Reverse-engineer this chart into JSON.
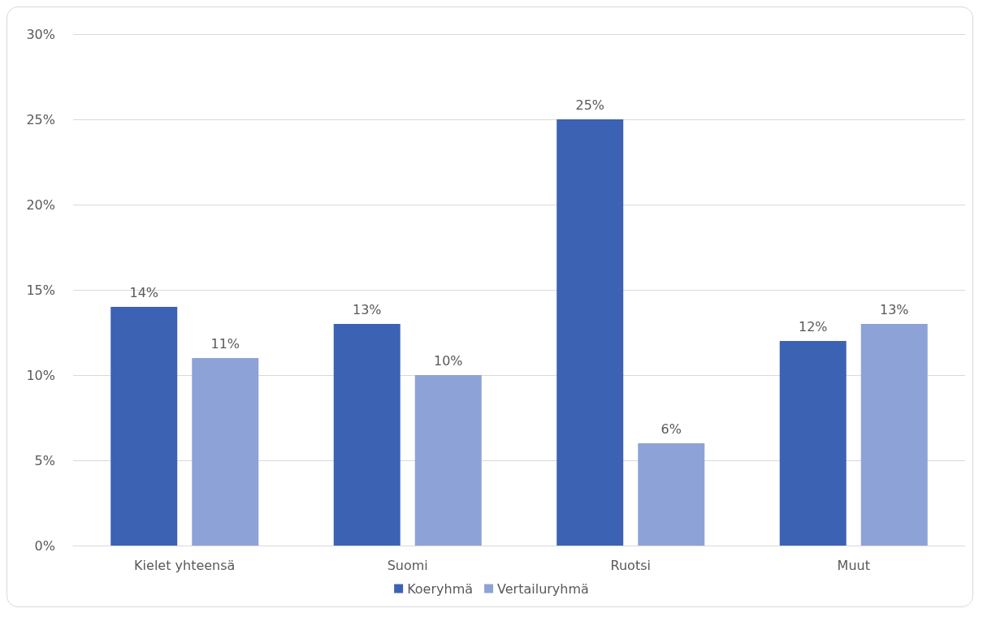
{
  "chart_data": {
    "type": "bar",
    "categories": [
      "Kielet yhteensä",
      "Suomi",
      "Ruotsi",
      "Muut"
    ],
    "series": [
      {
        "name": "Koeryhmä",
        "color": "#3b62b3",
        "values": [
          14,
          13,
          25,
          12
        ],
        "value_labels": [
          "14%",
          "13%",
          "25%",
          "12%"
        ]
      },
      {
        "name": "Vertailuryhmä",
        "color": "#8da2d6",
        "values": [
          11,
          10,
          6,
          13
        ],
        "value_labels": [
          "11%",
          "10%",
          "6%",
          "13%"
        ]
      }
    ],
    "ylim": [
      0,
      30
    ],
    "yticks": [
      {
        "value": 0,
        "label": "0%"
      },
      {
        "value": 5,
        "label": "5%"
      },
      {
        "value": 10,
        "label": "10%"
      },
      {
        "value": 15,
        "label": "15%"
      },
      {
        "value": 20,
        "label": "20%"
      },
      {
        "value": 25,
        "label": "25%"
      },
      {
        "value": 30,
        "label": "30%"
      }
    ],
    "grid": "y",
    "legend": "bottom"
  }
}
